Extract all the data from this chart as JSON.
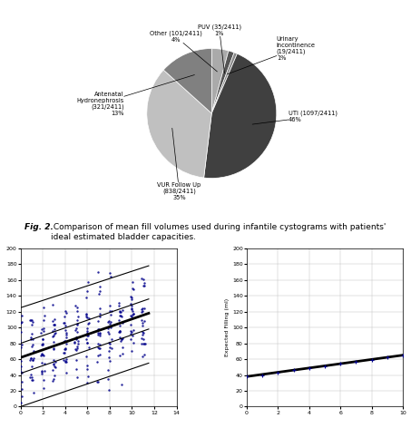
{
  "pie_labels": [
    "Other (101/2411)\n4%",
    "PUV (35/2411)\n1%",
    "Urinary\nIncontinence\n(19/2411)\n1%",
    "UTI (1097/2411)\n46%",
    "VUR Follow Up\n(838/2411)\n35%",
    "Antenatal\nHydronephrosis\n(321/2411)\n13%"
  ],
  "pie_sizes": [
    101,
    35,
    19,
    1097,
    838,
    321
  ],
  "pie_colors": [
    "#aaaaaa",
    "#555555",
    "#888888",
    "#404040",
    "#c0c0c0",
    "#808080"
  ],
  "pie_startangle": 90,
  "pie_counterclock": false,
  "fig_title": "Fig. 2.",
  "fig_caption": " Comparison of mean fill volumes used during infantile cystograms with patients'\nideal estimated bladder capacities.",
  "left_plot": {
    "xlim": [
      0,
      14
    ],
    "ylim": [
      0,
      200
    ],
    "xticks": [
      0,
      2,
      4,
      6,
      8,
      10,
      12,
      14
    ],
    "yticks": [
      0,
      20,
      40,
      60,
      80,
      100,
      120,
      140,
      160,
      180,
      200
    ],
    "main_line": {
      "x0": 0,
      "y0": 62,
      "x1": 11.5,
      "y1": 118,
      "lw": 2.0
    },
    "lines": [
      {
        "x0": 0,
        "y0": 125,
        "x1": 11.5,
        "y1": 178,
        "lw": 0.8
      },
      {
        "x0": 0,
        "y0": 0,
        "x1": 11.5,
        "y1": 55,
        "lw": 0.8
      },
      {
        "x0": 0,
        "y0": 80,
        "x1": 11.5,
        "y1": 136,
        "lw": 0.8
      },
      {
        "x0": 0,
        "y0": 42,
        "x1": 11.5,
        "y1": 98,
        "lw": 0.8
      }
    ],
    "scatter_color": "#00008B",
    "scatter_size": 3,
    "x_integers": [
      0,
      1,
      2,
      3,
      4,
      5,
      6,
      7,
      8,
      9,
      10,
      11
    ],
    "pts_per_col": 25
  },
  "right_plot": {
    "ylabel": "Expected Filling (ml)",
    "xlim": [
      0,
      10
    ],
    "ylim": [
      0,
      200
    ],
    "xticks": [
      0,
      2,
      4,
      6,
      8,
      10
    ],
    "yticks": [
      0,
      20,
      40,
      60,
      80,
      100,
      120,
      140,
      160,
      180,
      200
    ],
    "line_x": [
      0,
      10
    ],
    "line_y": [
      38,
      65
    ],
    "line_color": "black",
    "line_lw": 2.0,
    "scatter_color": "#00008B",
    "scatter_x": [
      0,
      1,
      2,
      3,
      4,
      5,
      6,
      7,
      8,
      9,
      10
    ],
    "scatter_y": [
      38,
      40,
      43,
      46,
      49,
      51,
      54,
      57,
      59,
      62,
      65
    ],
    "scatter_size": 8
  }
}
